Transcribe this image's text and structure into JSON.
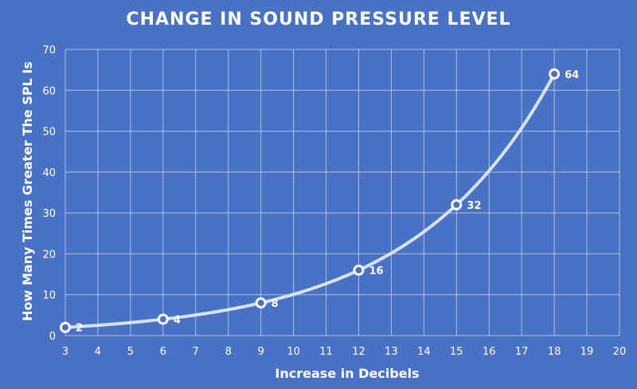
{
  "chart_data": {
    "type": "line",
    "title": "CHANGE IN SOUND PRESSURE LEVEL",
    "xlabel": "Increase in Decibels",
    "ylabel": "How Many Times Greater The SPL Is",
    "xlim": [
      3,
      20
    ],
    "ylim": [
      0,
      70
    ],
    "x_ticks": [
      3,
      4,
      5,
      6,
      7,
      8,
      9,
      10,
      11,
      12,
      13,
      14,
      15,
      16,
      17,
      18,
      19,
      20
    ],
    "y_ticks": [
      0,
      10,
      20,
      30,
      40,
      50,
      60,
      70
    ],
    "grid": true,
    "smooth": true,
    "series": [
      {
        "x": [
          3,
          6,
          9,
          12,
          15,
          18
        ],
        "values": [
          2,
          4,
          8,
          16,
          32,
          64
        ],
        "data_labels": [
          "2",
          "4",
          "8",
          "16",
          "32",
          "64"
        ],
        "color": "#ffffff"
      }
    ]
  }
}
